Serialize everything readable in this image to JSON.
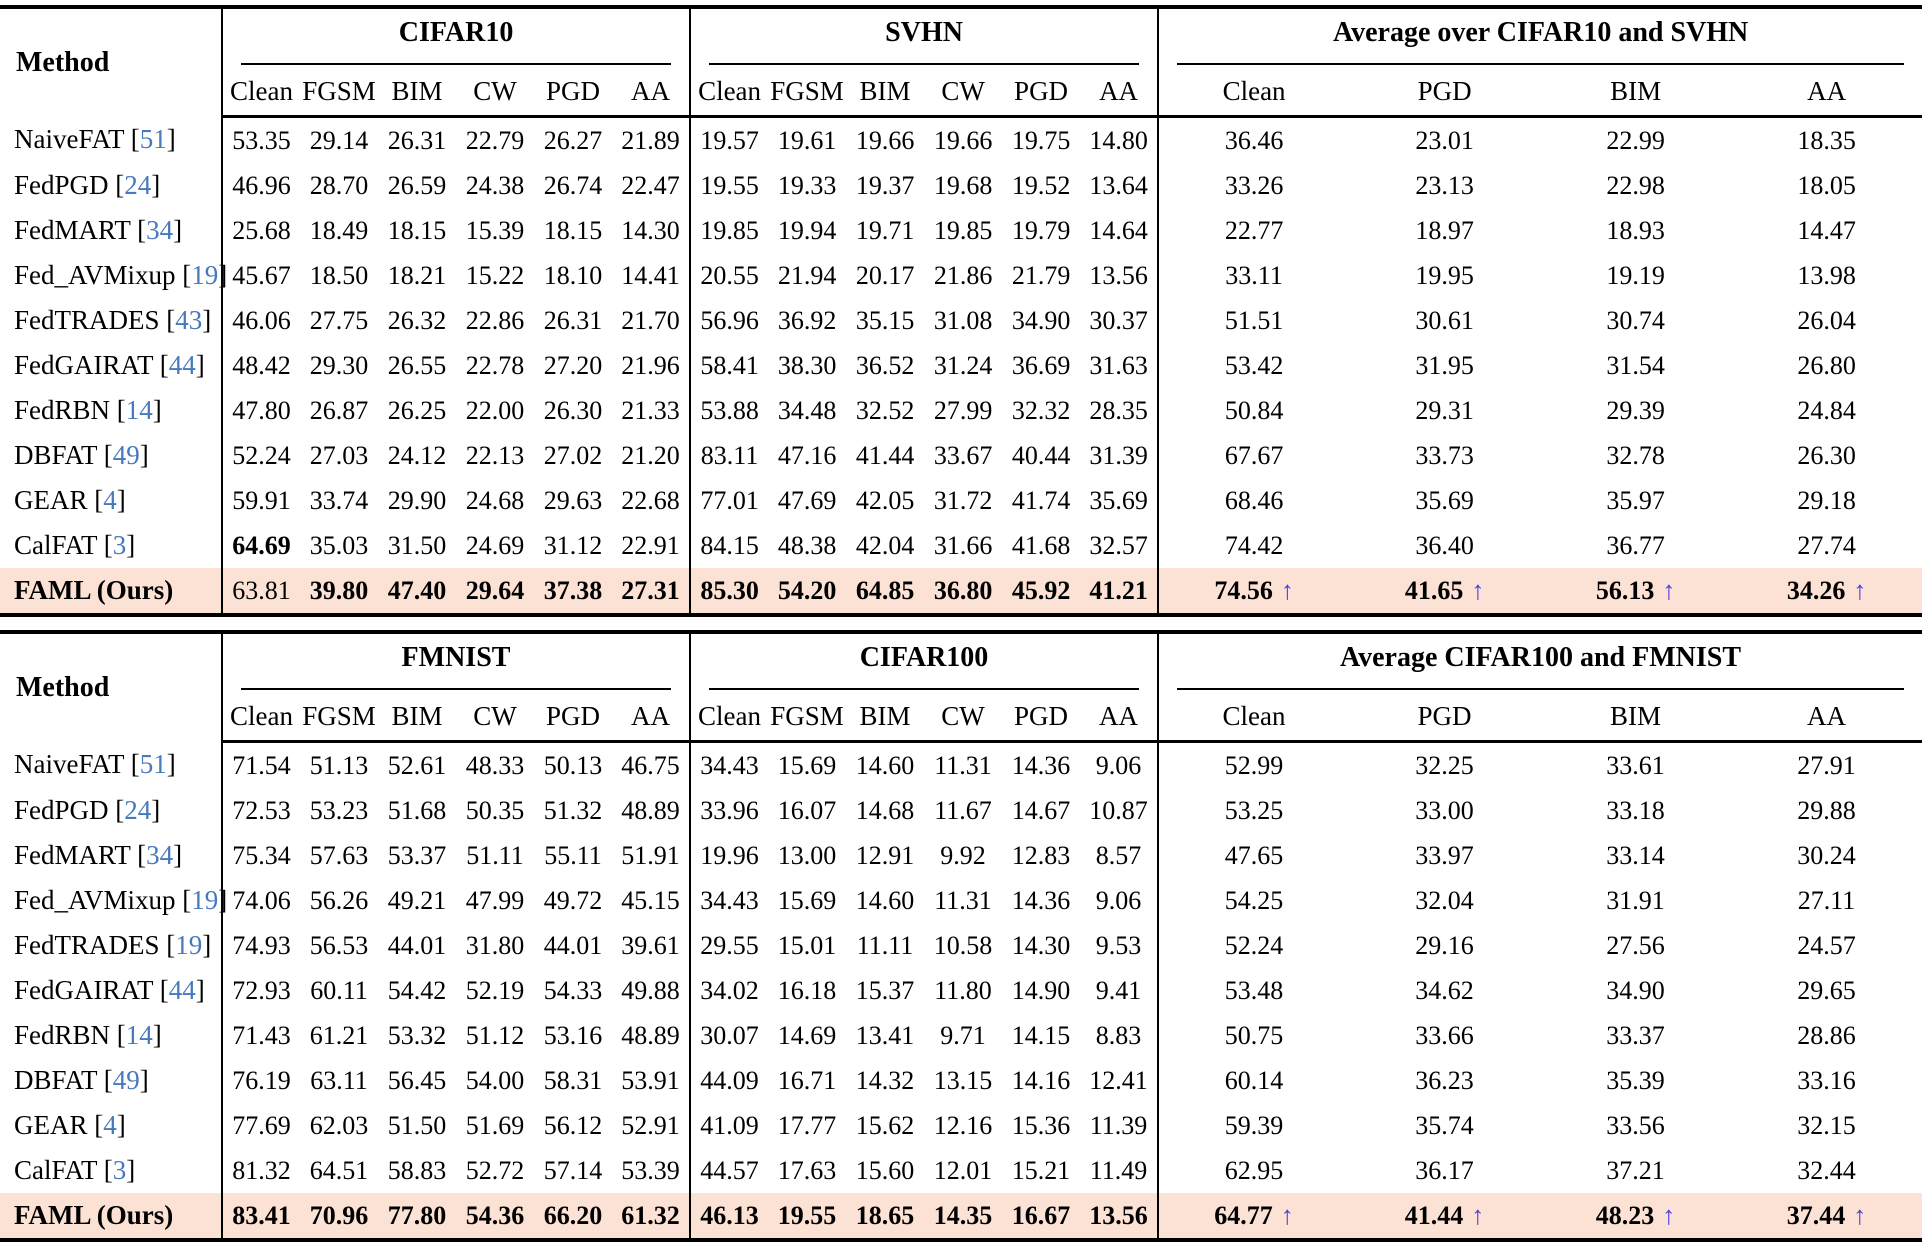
{
  "colors": {
    "highlight": "#fce2d4",
    "citation": "#4779bd",
    "arrow": "#4a3be0",
    "rule": "#000000"
  },
  "arrow_glyph": "↑",
  "tables": [
    {
      "method_header": "Method",
      "groups": [
        {
          "title": "CIFAR10",
          "cols": [
            "Clean",
            "FGSM",
            "BIM",
            "CW",
            "PGD",
            "AA"
          ]
        },
        {
          "title": "SVHN",
          "cols": [
            "Clean",
            "FGSM",
            "BIM",
            "CW",
            "PGD",
            "AA"
          ]
        },
        {
          "title": "Average over CIFAR10 and SVHN",
          "cols": [
            "Clean",
            "PGD",
            "BIM",
            "AA"
          ]
        }
      ],
      "rows": [
        {
          "method": "NaiveFAT",
          "cite": "51",
          "values": [
            "53.35",
            "29.14",
            "26.31",
            "22.79",
            "26.27",
            "21.89",
            "19.57",
            "19.61",
            "19.66",
            "19.66",
            "19.75",
            "14.80",
            "36.46",
            "23.01",
            "22.99",
            "18.35"
          ]
        },
        {
          "method": "FedPGD",
          "cite": "24",
          "values": [
            "46.96",
            "28.70",
            "26.59",
            "24.38",
            "26.74",
            "22.47",
            "19.55",
            "19.33",
            "19.37",
            "19.68",
            "19.52",
            "13.64",
            "33.26",
            "23.13",
            "22.98",
            "18.05"
          ]
        },
        {
          "method": "FedMART",
          "cite": "34",
          "values": [
            "25.68",
            "18.49",
            "18.15",
            "15.39",
            "18.15",
            "14.30",
            "19.85",
            "19.94",
            "19.71",
            "19.85",
            "19.79",
            "14.64",
            "22.77",
            "18.97",
            "18.93",
            "14.47"
          ]
        },
        {
          "method": "Fed_AVMixup",
          "cite": "19",
          "values": [
            "45.67",
            "18.50",
            "18.21",
            "15.22",
            "18.10",
            "14.41",
            "20.55",
            "21.94",
            "20.17",
            "21.86",
            "21.79",
            "13.56",
            "33.11",
            "19.95",
            "19.19",
            "13.98"
          ]
        },
        {
          "method": "FedTRADES",
          "cite": "43",
          "values": [
            "46.06",
            "27.75",
            "26.32",
            "22.86",
            "26.31",
            "21.70",
            "56.96",
            "36.92",
            "35.15",
            "31.08",
            "34.90",
            "30.37",
            "51.51",
            "30.61",
            "30.74",
            "26.04"
          ]
        },
        {
          "method": "FedGAIRAT",
          "cite": "44",
          "values": [
            "48.42",
            "29.30",
            "26.55",
            "22.78",
            "27.20",
            "21.96",
            "58.41",
            "38.30",
            "36.52",
            "31.24",
            "36.69",
            "31.63",
            "53.42",
            "31.95",
            "31.54",
            "26.80"
          ]
        },
        {
          "method": "FedRBN",
          "cite": "14",
          "values": [
            "47.80",
            "26.87",
            "26.25",
            "22.00",
            "26.30",
            "21.33",
            "53.88",
            "34.48",
            "32.52",
            "27.99",
            "32.32",
            "28.35",
            "50.84",
            "29.31",
            "29.39",
            "24.84"
          ]
        },
        {
          "method": "DBFAT",
          "cite": "49",
          "values": [
            "52.24",
            "27.03",
            "24.12",
            "22.13",
            "27.02",
            "21.20",
            "83.11",
            "47.16",
            "41.44",
            "33.67",
            "40.44",
            "31.39",
            "67.67",
            "33.73",
            "32.78",
            "26.30"
          ]
        },
        {
          "method": "GEAR",
          "cite": "4",
          "values": [
            "59.91",
            "33.74",
            "29.90",
            "24.68",
            "29.63",
            "22.68",
            "77.01",
            "47.69",
            "42.05",
            "31.72",
            "41.74",
            "35.69",
            "68.46",
            "35.69",
            "35.97",
            "29.18"
          ]
        },
        {
          "method": "CalFAT",
          "cite": "3",
          "values": [
            "64.69",
            "35.03",
            "31.50",
            "24.69",
            "31.12",
            "22.91",
            "84.15",
            "48.38",
            "42.04",
            "31.66",
            "41.68",
            "32.57",
            "74.42",
            "36.40",
            "36.77",
            "27.74"
          ],
          "bold": [
            0
          ]
        },
        {
          "method": "FAML (Ours)",
          "cite": null,
          "highlight": true,
          "bold_method": true,
          "values": [
            "63.81",
            "39.80",
            "47.40",
            "29.64",
            "37.38",
            "27.31",
            "85.30",
            "54.20",
            "64.85",
            "36.80",
            "45.92",
            "41.21",
            "74.56",
            "41.65",
            "56.13",
            "34.26"
          ],
          "bold": [
            1,
            2,
            3,
            4,
            5,
            6,
            7,
            8,
            9,
            10,
            11,
            12,
            13,
            14,
            15
          ],
          "arrows": [
            12,
            13,
            14,
            15
          ]
        }
      ]
    },
    {
      "method_header": "Method",
      "groups": [
        {
          "title": "FMNIST",
          "cols": [
            "Clean",
            "FGSM",
            "BIM",
            "CW",
            "PGD",
            "AA"
          ]
        },
        {
          "title": "CIFAR100",
          "cols": [
            "Clean",
            "FGSM",
            "BIM",
            "CW",
            "PGD",
            "AA"
          ]
        },
        {
          "title": "Average CIFAR100 and FMNIST",
          "cols": [
            "Clean",
            "PGD",
            "BIM",
            "AA"
          ]
        }
      ],
      "rows": [
        {
          "method": "NaiveFAT",
          "cite": "51",
          "values": [
            "71.54",
            "51.13",
            "52.61",
            "48.33",
            "50.13",
            "46.75",
            "34.43",
            "15.69",
            "14.60",
            "11.31",
            "14.36",
            "9.06",
            "52.99",
            "32.25",
            "33.61",
            "27.91"
          ]
        },
        {
          "method": "FedPGD",
          "cite": "24",
          "values": [
            "72.53",
            "53.23",
            "51.68",
            "50.35",
            "51.32",
            "48.89",
            "33.96",
            "16.07",
            "14.68",
            "11.67",
            "14.67",
            "10.87",
            "53.25",
            "33.00",
            "33.18",
            "29.88"
          ]
        },
        {
          "method": "FedMART",
          "cite": "34",
          "values": [
            "75.34",
            "57.63",
            "53.37",
            "51.11",
            "55.11",
            "51.91",
            "19.96",
            "13.00",
            "12.91",
            "9.92",
            "12.83",
            "8.57",
            "47.65",
            "33.97",
            "33.14",
            "30.24"
          ]
        },
        {
          "method": "Fed_AVMixup",
          "cite": "19",
          "values": [
            "74.06",
            "56.26",
            "49.21",
            "47.99",
            "49.72",
            "45.15",
            "34.43",
            "15.69",
            "14.60",
            "11.31",
            "14.36",
            "9.06",
            "54.25",
            "32.04",
            "31.91",
            "27.11"
          ]
        },
        {
          "method": "FedTRADES",
          "cite": "19",
          "values": [
            "74.93",
            "56.53",
            "44.01",
            "31.80",
            "44.01",
            "39.61",
            "29.55",
            "15.01",
            "11.11",
            "10.58",
            "14.30",
            "9.53",
            "52.24",
            "29.16",
            "27.56",
            "24.57"
          ]
        },
        {
          "method": "FedGAIRAT",
          "cite": "44",
          "values": [
            "72.93",
            "60.11",
            "54.42",
            "52.19",
            "54.33",
            "49.88",
            "34.02",
            "16.18",
            "15.37",
            "11.80",
            "14.90",
            "9.41",
            "53.48",
            "34.62",
            "34.90",
            "29.65"
          ]
        },
        {
          "method": "FedRBN",
          "cite": "14",
          "values": [
            "71.43",
            "61.21",
            "53.32",
            "51.12",
            "53.16",
            "48.89",
            "30.07",
            "14.69",
            "13.41",
            "9.71",
            "14.15",
            "8.83",
            "50.75",
            "33.66",
            "33.37",
            "28.86"
          ]
        },
        {
          "method": "DBFAT",
          "cite": "49",
          "values": [
            "76.19",
            "63.11",
            "56.45",
            "54.00",
            "58.31",
            "53.91",
            "44.09",
            "16.71",
            "14.32",
            "13.15",
            "14.16",
            "12.41",
            "60.14",
            "36.23",
            "35.39",
            "33.16"
          ]
        },
        {
          "method": "GEAR",
          "cite": "4",
          "values": [
            "77.69",
            "62.03",
            "51.50",
            "51.69",
            "56.12",
            "52.91",
            "41.09",
            "17.77",
            "15.62",
            "12.16",
            "15.36",
            "11.39",
            "59.39",
            "35.74",
            "33.56",
            "32.15"
          ]
        },
        {
          "method": "CalFAT",
          "cite": "3",
          "values": [
            "81.32",
            "64.51",
            "58.83",
            "52.72",
            "57.14",
            "53.39",
            "44.57",
            "17.63",
            "15.60",
            "12.01",
            "15.21",
            "11.49",
            "62.95",
            "36.17",
            "37.21",
            "32.44"
          ]
        },
        {
          "method": "FAML (Ours)",
          "cite": null,
          "highlight": true,
          "bold_method": true,
          "values": [
            "83.41",
            "70.96",
            "77.80",
            "54.36",
            "66.20",
            "61.32",
            "46.13",
            "19.55",
            "18.65",
            "14.35",
            "16.67",
            "13.56",
            "64.77",
            "41.44",
            "48.23",
            "37.44"
          ],
          "bold": [
            0,
            1,
            2,
            3,
            4,
            5,
            6,
            7,
            8,
            9,
            10,
            11,
            12,
            13,
            14,
            15
          ],
          "arrows": [
            12,
            13,
            14,
            15
          ]
        }
      ]
    }
  ]
}
